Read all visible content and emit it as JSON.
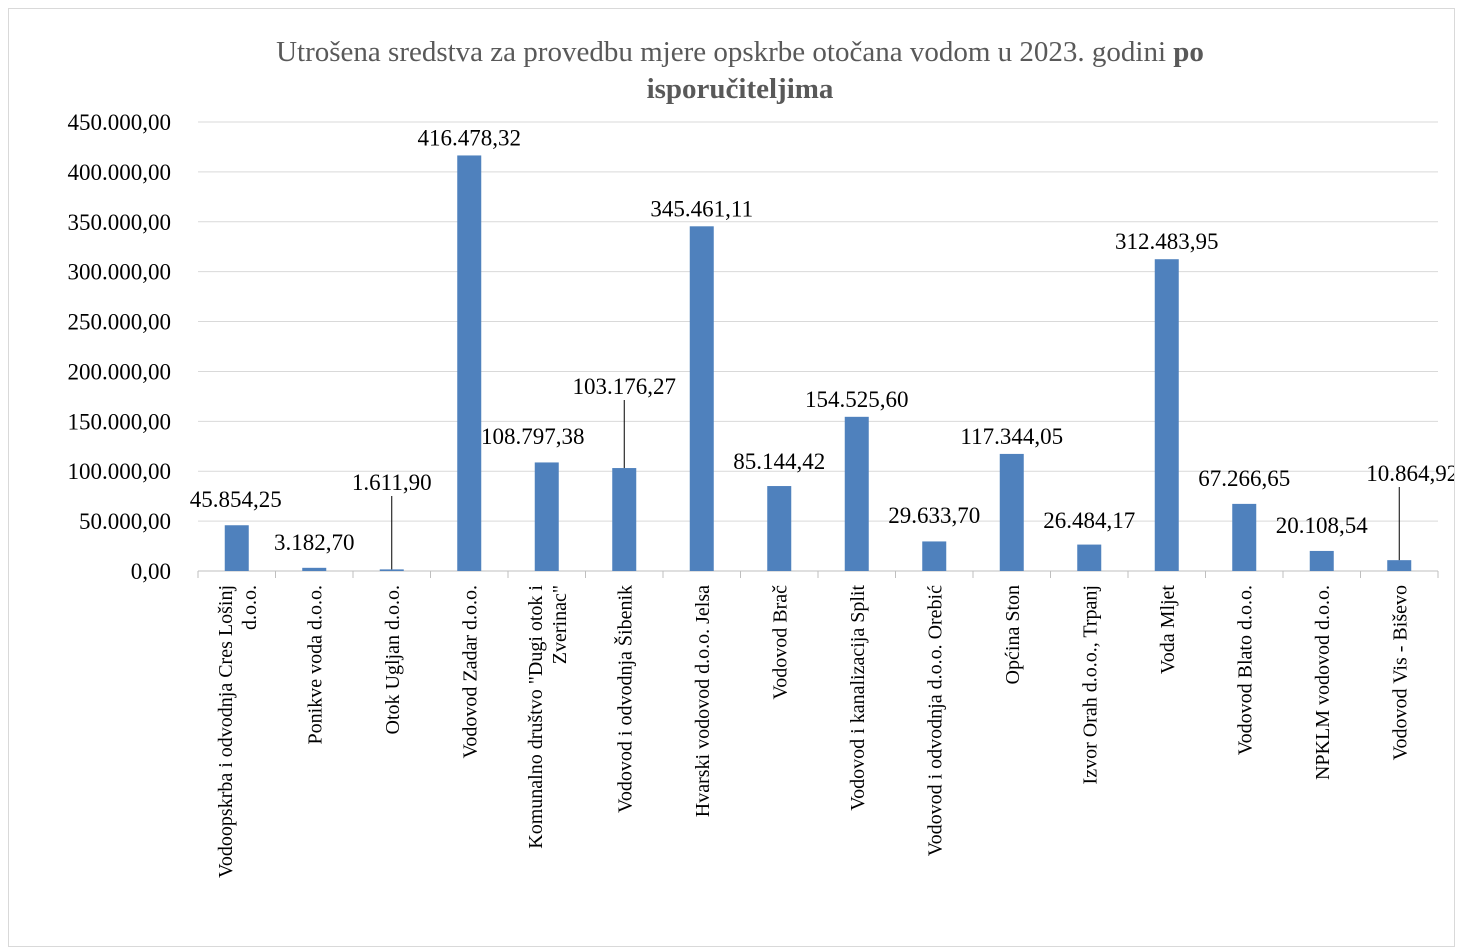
{
  "chart_data": {
    "type": "bar",
    "title": {
      "normal": "Utrošena sredstva za provedbu mjere opskrbe otočana vodom u 2023. godini",
      "bold_inline": "po",
      "bold_line2": "isporučiteljima"
    },
    "xlabel": "",
    "ylabel": "",
    "ylim": [
      0,
      450000
    ],
    "y_ticks": [
      0,
      50000,
      100000,
      150000,
      200000,
      250000,
      300000,
      350000,
      400000,
      450000
    ],
    "y_tick_labels": [
      "0,00",
      "50.000,00",
      "100.000,00",
      "150.000,00",
      "200.000,00",
      "250.000,00",
      "300.000,00",
      "350.000,00",
      "400.000,00",
      "450.000,00"
    ],
    "grid": true,
    "legend": "none",
    "bar_color": "#4f81bd",
    "categories": [
      {
        "lines": [
          "Vodoopskrba i odvodnja Cres Lošinj",
          "d.o.o."
        ]
      },
      {
        "lines": [
          "Ponikve voda d.o.o."
        ]
      },
      {
        "lines": [
          "Otok Ugljan d.o.o."
        ]
      },
      {
        "lines": [
          "Vodovod Zadar d.o.o."
        ]
      },
      {
        "lines": [
          "Komunalno društvo \"Dugi otok i",
          "Zverinac\""
        ]
      },
      {
        "lines": [
          "Vodovod i odvodnja Šibenik"
        ]
      },
      {
        "lines": [
          "Hvarski vodovod d.o.o. Jelsa"
        ]
      },
      {
        "lines": [
          "Vodovod Brač"
        ]
      },
      {
        "lines": [
          "Vodovod i kanalizacija Split"
        ]
      },
      {
        "lines": [
          "Vodovod i odvodnja d.o.o. Orebić"
        ]
      },
      {
        "lines": [
          "Općina Ston"
        ]
      },
      {
        "lines": [
          "Izvor Orah d.o.o., Trpanj"
        ]
      },
      {
        "lines": [
          "Voda Mljet"
        ]
      },
      {
        "lines": [
          "Vodovod Blato d.o.o."
        ]
      },
      {
        "lines": [
          "NPKLM vodovod d.o.o."
        ]
      },
      {
        "lines": [
          "Vodovod Vis - Biševo"
        ]
      }
    ],
    "values": [
      45854.25,
      3182.7,
      1611.9,
      416478.32,
      108797.38,
      103176.27,
      345461.11,
      85144.42,
      154525.6,
      29633.7,
      117344.05,
      26484.17,
      312483.95,
      67266.65,
      20108.54,
      10864.92
    ],
    "data_labels": [
      "45.854,25",
      "3.182,70",
      "1.611,90",
      "416.478,32",
      "108.797,38",
      "103.176,27",
      "345.461,11",
      "85.144,42",
      "154.525,60",
      "29.633,70",
      "117.344,05",
      "26.484,17",
      "312.483,95",
      "67.266,65",
      "20.108,54",
      "10.864,92"
    ],
    "data_label_leader_lines": [
      2,
      5,
      15
    ]
  }
}
